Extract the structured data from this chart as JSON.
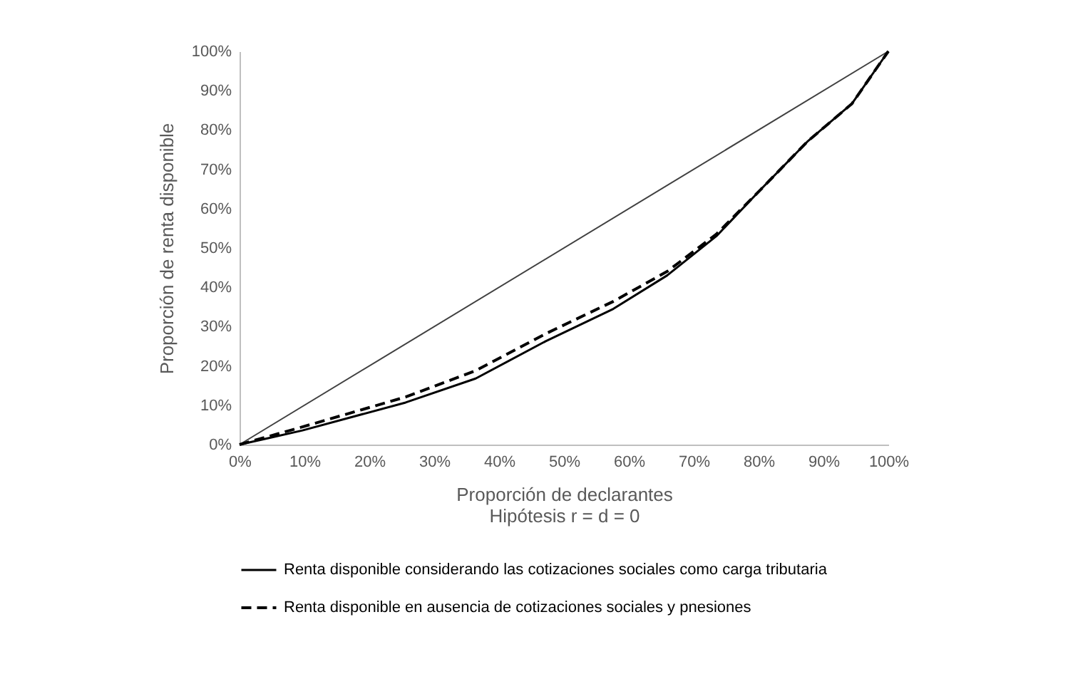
{
  "chart_data": {
    "type": "line",
    "xlabel": "Proporción de declarantes",
    "ylabel": "Proporción de renta disponible",
    "annotations": [
      "Hipótesis r = d = 0"
    ],
    "xlim": [
      0,
      100
    ],
    "ylim": [
      0,
      100
    ],
    "xticks": [
      {
        "value": 0,
        "label": "0%"
      },
      {
        "value": 10,
        "label": "10%"
      },
      {
        "value": 20,
        "label": "20%"
      },
      {
        "value": 30,
        "label": "30%"
      },
      {
        "value": 40,
        "label": "40%"
      },
      {
        "value": 50,
        "label": "50%"
      },
      {
        "value": 60,
        "label": "60%"
      },
      {
        "value": 70,
        "label": "70%"
      },
      {
        "value": 80,
        "label": "80%"
      },
      {
        "value": 90,
        "label": "90%"
      },
      {
        "value": 100,
        "label": "100%"
      }
    ],
    "yticks": [
      {
        "value": 0,
        "label": "0%"
      },
      {
        "value": 10,
        "label": "10%"
      },
      {
        "value": 20,
        "label": "20%"
      },
      {
        "value": 30,
        "label": "30%"
      },
      {
        "value": 40,
        "label": "40%"
      },
      {
        "value": 50,
        "label": "50%"
      },
      {
        "value": 60,
        "label": "60%"
      },
      {
        "value": 70,
        "label": "70%"
      },
      {
        "value": 80,
        "label": "80%"
      },
      {
        "value": 90,
        "label": "90%"
      },
      {
        "value": 100,
        "label": "100%"
      }
    ],
    "grid": false,
    "legend": "bottom",
    "series": [
      {
        "color": "#404040",
        "line_style": "solid",
        "x": [
          0,
          100
        ],
        "values": [
          0,
          100
        ]
      },
      {
        "name": "Renta disponible considerando las cotizaciones sociales como carga tributaria",
        "color": "#000000",
        "line_style": "solid",
        "x": [
          0,
          4.3,
          9.7,
          25.6,
          36.4,
          47.2,
          57.6,
          65.9,
          73.5,
          80.3,
          87.5,
          94.4,
          100
        ],
        "values": [
          0,
          1.6,
          3.6,
          10.7,
          16.8,
          26.3,
          34.5,
          43,
          53,
          64.8,
          77,
          86.7,
          100
        ]
      },
      {
        "name": "Renta disponible en ausencia de cotizaciones sociales y  pnesiones",
        "color": "#000000",
        "line_style": "dashed",
        "x": [
          0,
          4.3,
          9.7,
          25.6,
          36.4,
          47.2,
          57.6,
          65.9,
          73.5,
          80.3,
          87.5,
          94.4,
          100
        ],
        "values": [
          0,
          2,
          4.5,
          12.1,
          18.8,
          28.2,
          36.4,
          44,
          53.5,
          64.8,
          77,
          86.7,
          100
        ]
      }
    ]
  }
}
